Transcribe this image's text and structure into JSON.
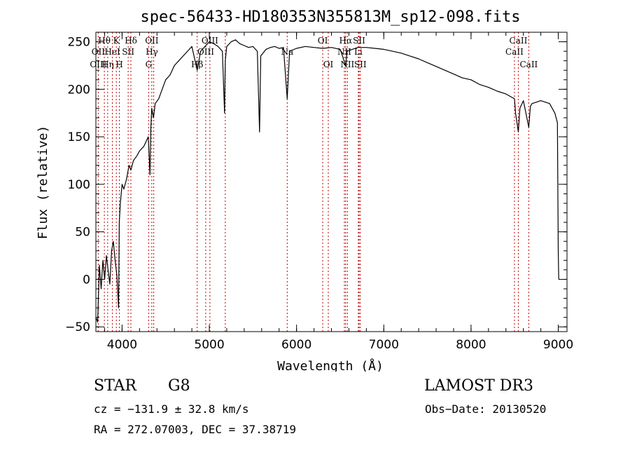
{
  "chart_data": {
    "type": "line",
    "title": "spec-56433-HD180353N355813M_sp12-098.fits",
    "xlabel": "Wavelength (Å)",
    "ylabel": "Flux (relative)",
    "xlim": [
      3700,
      9100
    ],
    "ylim": [
      -55,
      260
    ],
    "xticks": [
      4000,
      5000,
      6000,
      7000,
      8000,
      9000
    ],
    "yticks": [
      -50,
      0,
      50,
      100,
      150,
      200,
      250
    ],
    "x_minor_step": 200,
    "y_minor_step": 10,
    "grid": false,
    "series": [
      {
        "color": "#000000",
        "x": [
          3700,
          3720,
          3740,
          3760,
          3780,
          3800,
          3820,
          3840,
          3860,
          3880,
          3900,
          3920,
          3940,
          3960,
          3968,
          3980,
          4000,
          4020,
          4050,
          4080,
          4101,
          4130,
          4170,
          4200,
          4250,
          4300,
          4320,
          4330,
          4340,
          4360,
          4380,
          4420,
          4460,
          4500,
          4550,
          4600,
          4650,
          4700,
          4750,
          4800,
          4861,
          4900,
          4950,
          5000,
          5050,
          5100,
          5150,
          5175,
          5183,
          5200,
          5250,
          5300,
          5350,
          5400,
          5450,
          5500,
          5550,
          5576,
          5590,
          5650,
          5700,
          5750,
          5800,
          5850,
          5893,
          5920,
          6000,
          6100,
          6200,
          6300,
          6400,
          6500,
          6563,
          6580,
          6700,
          6800,
          6900,
          7000,
          7100,
          7200,
          7300,
          7400,
          7500,
          7600,
          7700,
          7800,
          7900,
          8000,
          8100,
          8200,
          8300,
          8400,
          8498,
          8510,
          8542,
          8560,
          8600,
          8662,
          8680,
          8700,
          8800,
          8900,
          8960,
          8990,
          9000,
          9005
        ],
        "y": [
          -40,
          -45,
          15,
          -10,
          20,
          0,
          25,
          10,
          -5,
          30,
          40,
          20,
          5,
          -30,
          60,
          80,
          100,
          95,
          105,
          120,
          115,
          125,
          130,
          135,
          140,
          150,
          110,
          160,
          180,
          170,
          185,
          190,
          200,
          210,
          215,
          225,
          230,
          235,
          240,
          245,
          220,
          240,
          245,
          250,
          248,
          245,
          240,
          175,
          230,
          245,
          250,
          252,
          248,
          246,
          244,
          245,
          240,
          155,
          235,
          242,
          244,
          245,
          243,
          244,
          190,
          240,
          243,
          245,
          244,
          243,
          244,
          242,
          225,
          240,
          244,
          244,
          243,
          242,
          240,
          238,
          235,
          232,
          228,
          224,
          220,
          216,
          212,
          210,
          205,
          202,
          198,
          195,
          190,
          175,
          155,
          180,
          188,
          160,
          182,
          185,
          188,
          185,
          175,
          165,
          30,
          0
        ]
      }
    ],
    "line_labels_top": [
      {
        "label": "Hθ",
        "x": 3797
      },
      {
        "label": "K",
        "x": 3934
      },
      {
        "label": "Hδ",
        "x": 4101
      },
      {
        "label": "OII",
        "x": 4341
      },
      {
        "label": "OIII",
        "x": 5007
      },
      {
        "label": "OI",
        "x": 6300
      },
      {
        "label": "Hα",
        "x": 6563
      },
      {
        "label": "SII",
        "x": 6717
      },
      {
        "label": "CaII",
        "x": 8542
      }
    ],
    "line_labels_mid": [
      {
        "label": "OII",
        "x": 3727
      },
      {
        "label": "HeI",
        "x": 3889
      },
      {
        "label": "SII",
        "x": 4070
      },
      {
        "label": "Hγ",
        "x": 4341
      },
      {
        "label": "OIII",
        "x": 4959
      },
      {
        "label": "Na",
        "x": 5893
      },
      {
        "label": "NII",
        "x": 6548
      },
      {
        "label": "Li",
        "x": 6708
      },
      {
        "label": "CaII",
        "x": 8498
      }
    ],
    "line_labels_low": [
      {
        "label": "OIII",
        "x": 3727
      },
      {
        "label": "Hη",
        "x": 3835
      },
      {
        "label": "H",
        "x": 3969
      },
      {
        "label": "G",
        "x": 4305
      },
      {
        "label": "Hβ",
        "x": 4861
      },
      {
        "label": "OI",
        "x": 6364
      },
      {
        "label": "NII",
        "x": 6583
      },
      {
        "label": "SII",
        "x": 6731
      },
      {
        "label": "CaII",
        "x": 8662
      }
    ],
    "line_markers": [
      3727,
      3797,
      3835,
      3889,
      3934,
      3969,
      4070,
      4101,
      4305,
      4341,
      4363,
      4861,
      4959,
      5007,
      5183,
      5893,
      6300,
      6364,
      6548,
      6563,
      6583,
      6708,
      6717,
      6731,
      8498,
      8542,
      8662
    ]
  },
  "info": {
    "object_type": "STAR",
    "subclass": "G8",
    "survey": "LAMOST DR3",
    "velocity": "cz = −131.9 ± 32.8 km/s",
    "obs_date": "Obs−Date: 20130520",
    "coords": "RA = 272.07003, DEC =  37.38719"
  }
}
